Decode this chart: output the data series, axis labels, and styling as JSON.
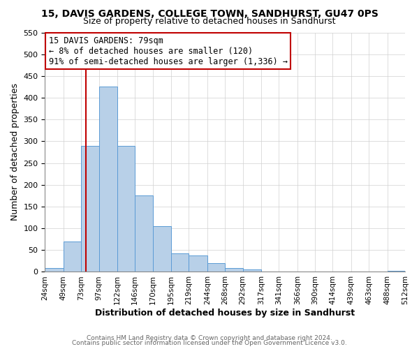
{
  "title": "15, DAVIS GARDENS, COLLEGE TOWN, SANDHURST, GU47 0PS",
  "subtitle": "Size of property relative to detached houses in Sandhurst",
  "xlabel": "Distribution of detached houses by size in Sandhurst",
  "ylabel": "Number of detached properties",
  "bar_edges": [
    24,
    49,
    73,
    97,
    122,
    146,
    170,
    195,
    219,
    244,
    268,
    292,
    317,
    341,
    366,
    390,
    414,
    439,
    463,
    488,
    512
  ],
  "bar_heights": [
    8,
    70,
    290,
    425,
    290,
    175,
    105,
    43,
    38,
    20,
    8,
    5,
    1,
    0,
    1,
    0,
    0,
    0,
    0,
    2
  ],
  "tick_labels": [
    "24sqm",
    "49sqm",
    "73sqm",
    "97sqm",
    "122sqm",
    "146sqm",
    "170sqm",
    "195sqm",
    "219sqm",
    "244sqm",
    "268sqm",
    "292sqm",
    "317sqm",
    "341sqm",
    "366sqm",
    "390sqm",
    "414sqm",
    "439sqm",
    "463sqm",
    "488sqm",
    "512sqm"
  ],
  "bar_color": "#b8d0e8",
  "bar_edge_color": "#5b9bd5",
  "vline_x": 79,
  "vline_color": "#c00000",
  "annotation_box_edge_color": "#c00000",
  "annotation_line1": "15 DAVIS GARDENS: 79sqm",
  "annotation_line2": "← 8% of detached houses are smaller (120)",
  "annotation_line3": "91% of semi-detached houses are larger (1,336) →",
  "ylim": [
    0,
    550
  ],
  "yticks": [
    0,
    50,
    100,
    150,
    200,
    250,
    300,
    350,
    400,
    450,
    500,
    550
  ],
  "footer1": "Contains HM Land Registry data © Crown copyright and database right 2024.",
  "footer2": "Contains public sector information licensed under the Open Government Licence v3.0.",
  "fig_bg": "#ffffff",
  "grid_color": "#d0d0d0"
}
